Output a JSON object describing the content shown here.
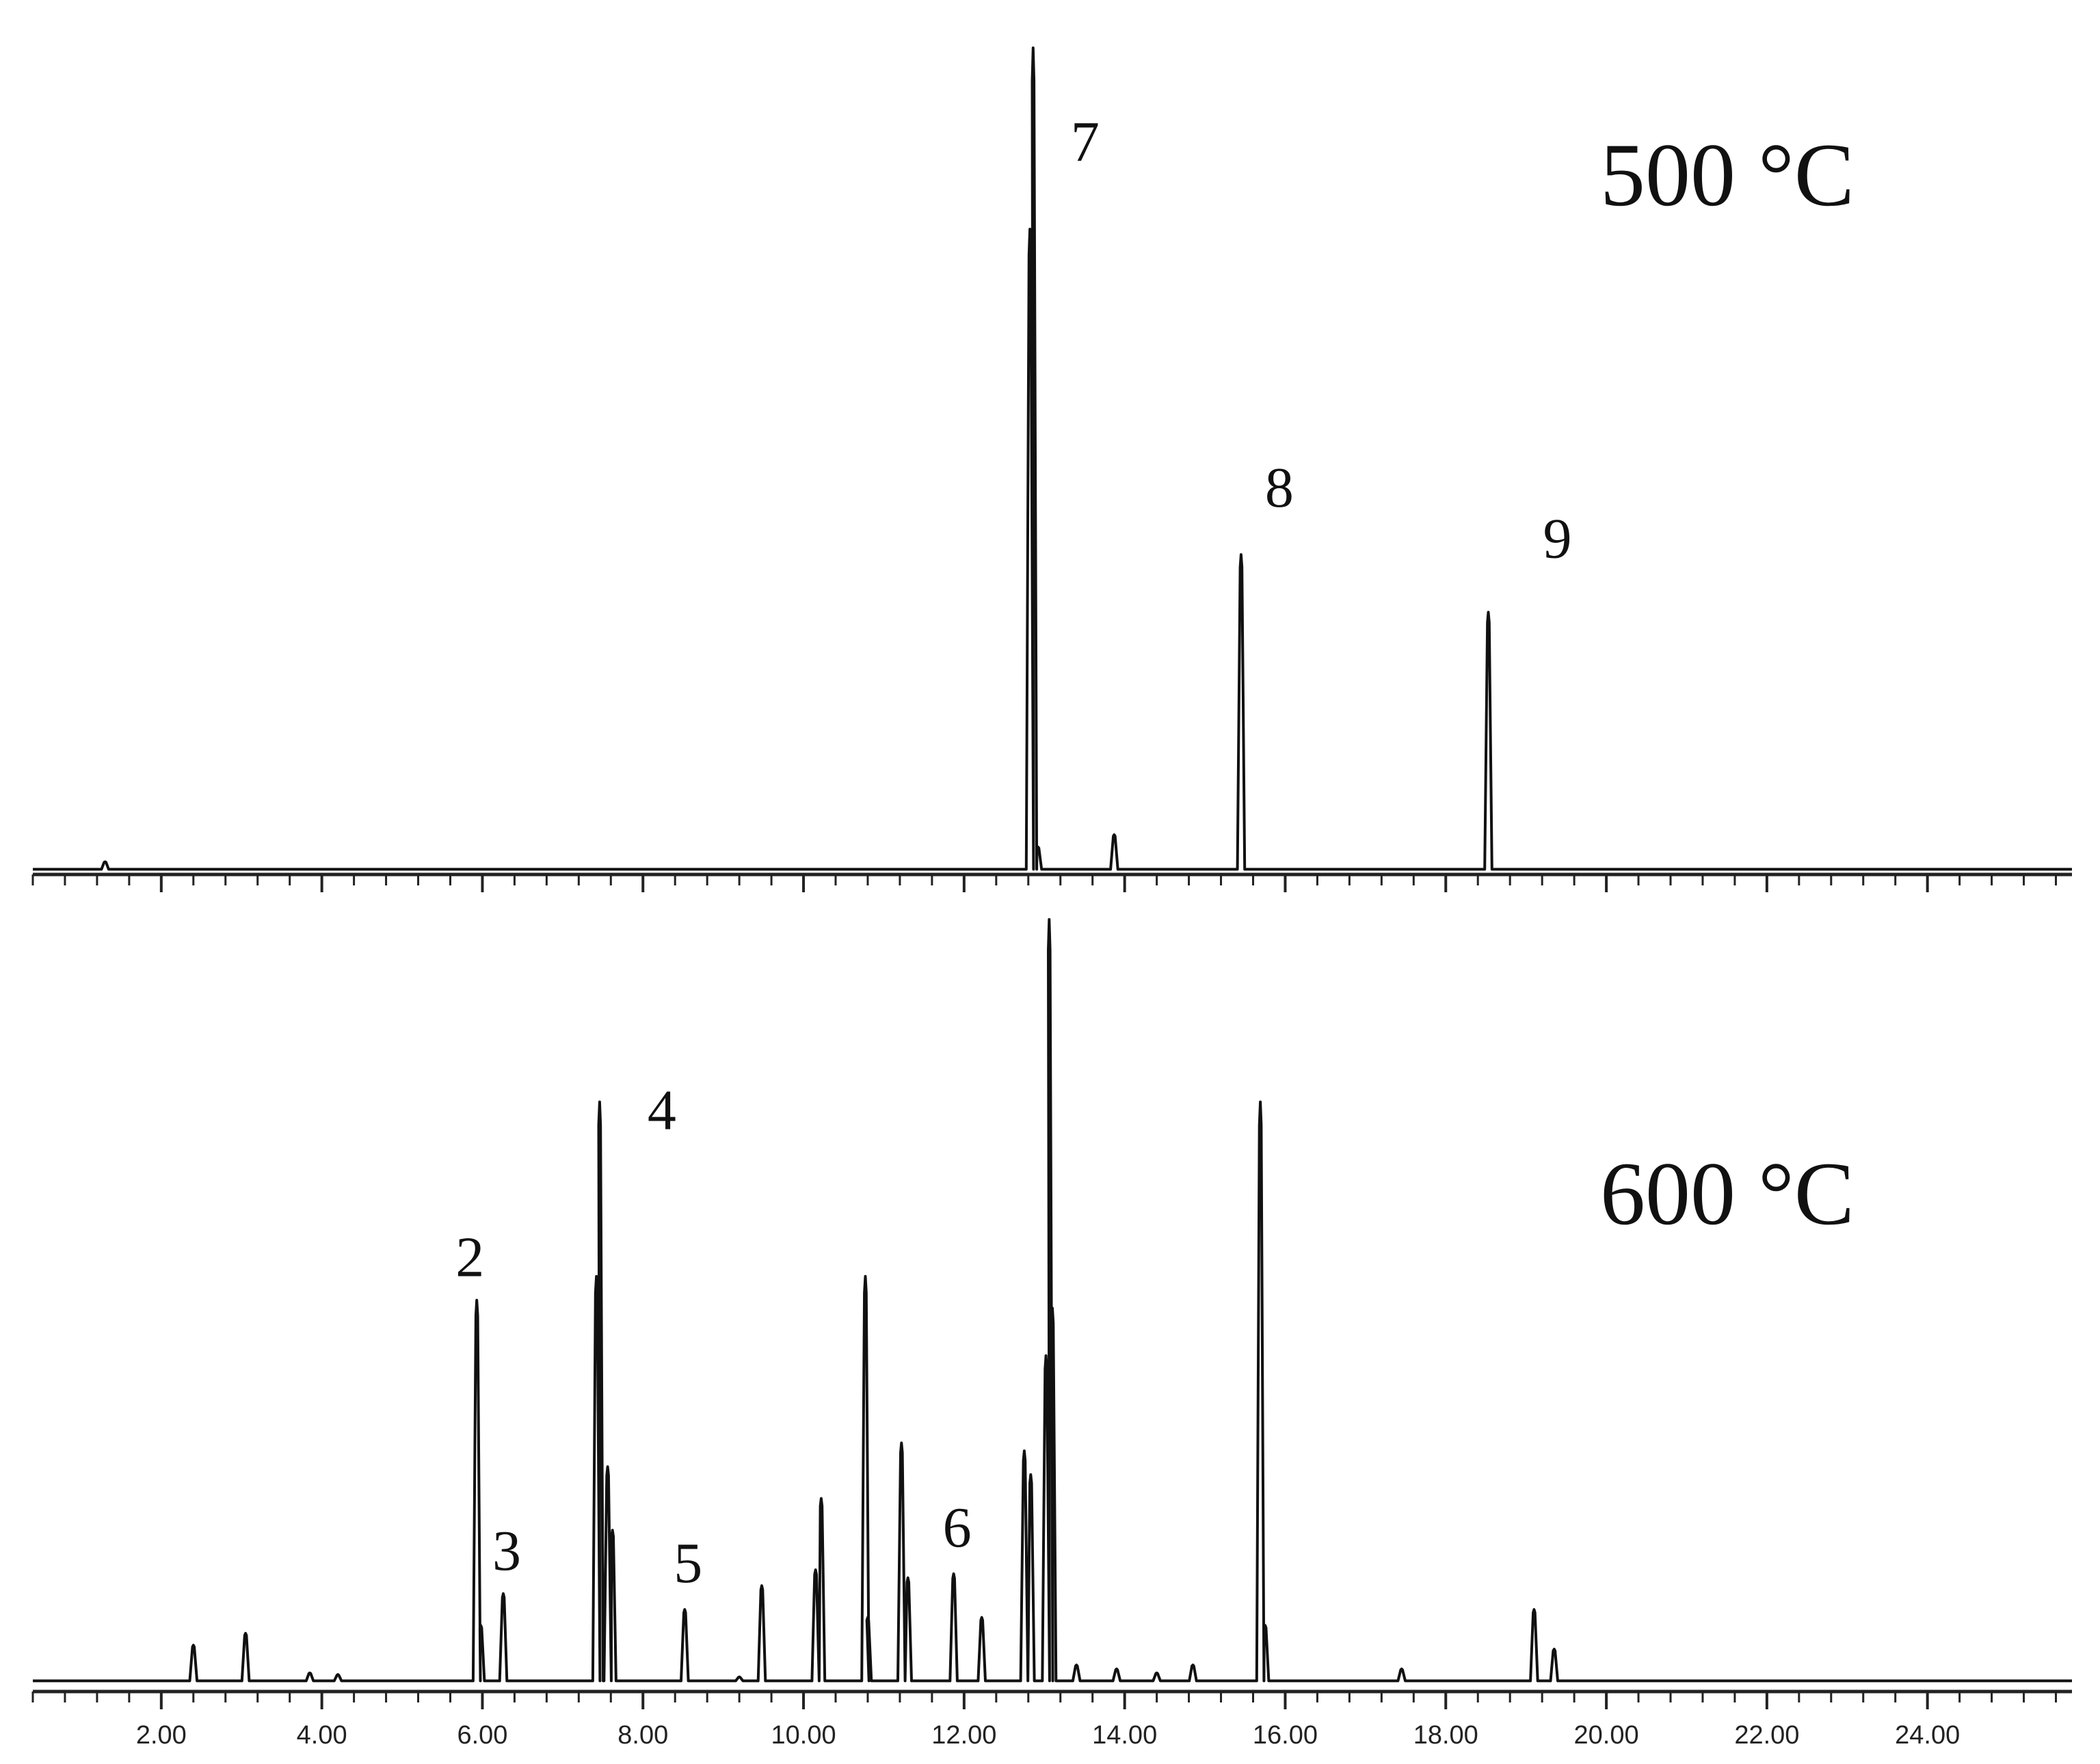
{
  "colors": {
    "trace": "#111111",
    "axis": "#222222",
    "background": "#ffffff"
  },
  "chart_data": [
    {
      "type": "line",
      "panel": "top",
      "temperature_label": "500 °C",
      "xlim": [
        0.4,
        25.8
      ],
      "ylim": [
        0,
        1.0
      ],
      "axis_ticks_labeled": false,
      "baseline": 0.003,
      "peaks": [
        {
          "x": 1.3,
          "y": 0.012
        },
        {
          "x": 12.82,
          "y": 0.78
        },
        {
          "x": 12.86,
          "y": 1.0,
          "label": "7"
        },
        {
          "x": 12.92,
          "y": 0.03
        },
        {
          "x": 13.87,
          "y": 0.045
        },
        {
          "x": 15.45,
          "y": 0.385,
          "label": "8"
        },
        {
          "x": 18.53,
          "y": 0.315,
          "label": "9"
        }
      ]
    },
    {
      "type": "line",
      "panel": "bottom",
      "temperature_label": "600 °C",
      "xlim": [
        0.4,
        25.8
      ],
      "ylim": [
        0,
        1.0
      ],
      "x_tick_labels": [
        "2.00",
        "4.00",
        "6.00",
        "8.00",
        "10.00",
        "12.00",
        "14.00",
        "16.00",
        "18.00",
        "20.00",
        "22.00",
        "24.00"
      ],
      "x_ticks": [
        2,
        4,
        6,
        8,
        10,
        12,
        14,
        16,
        18,
        20,
        22,
        24
      ],
      "baseline": 0.01,
      "peaks": [
        {
          "x": 2.4,
          "y": 0.055
        },
        {
          "x": 3.05,
          "y": 0.07
        },
        {
          "x": 3.85,
          "y": 0.02
        },
        {
          "x": 4.2,
          "y": 0.018
        },
        {
          "x": 5.93,
          "y": 0.49,
          "label": "2"
        },
        {
          "x": 5.98,
          "y": 0.08
        },
        {
          "x": 6.26,
          "y": 0.12,
          "label": "3"
        },
        {
          "x": 7.42,
          "y": 0.52
        },
        {
          "x": 7.46,
          "y": 0.74,
          "label": "4"
        },
        {
          "x": 7.56,
          "y": 0.28
        },
        {
          "x": 7.62,
          "y": 0.2
        },
        {
          "x": 8.52,
          "y": 0.1,
          "label": "5"
        },
        {
          "x": 9.2,
          "y": 0.015
        },
        {
          "x": 9.48,
          "y": 0.13
        },
        {
          "x": 10.15,
          "y": 0.15
        },
        {
          "x": 10.22,
          "y": 0.24
        },
        {
          "x": 10.77,
          "y": 0.52
        },
        {
          "x": 10.8,
          "y": 0.09
        },
        {
          "x": 11.22,
          "y": 0.31
        },
        {
          "x": 11.3,
          "y": 0.14
        },
        {
          "x": 11.87,
          "y": 0.145,
          "label": "6"
        },
        {
          "x": 12.22,
          "y": 0.09
        },
        {
          "x": 12.75,
          "y": 0.3
        },
        {
          "x": 12.83,
          "y": 0.27
        },
        {
          "x": 13.02,
          "y": 0.42
        },
        {
          "x": 13.06,
          "y": 0.97
        },
        {
          "x": 13.1,
          "y": 0.48
        },
        {
          "x": 13.4,
          "y": 0.03
        },
        {
          "x": 13.9,
          "y": 0.025
        },
        {
          "x": 14.4,
          "y": 0.02
        },
        {
          "x": 14.85,
          "y": 0.03
        },
        {
          "x": 15.69,
          "y": 0.74
        },
        {
          "x": 15.75,
          "y": 0.08
        },
        {
          "x": 17.45,
          "y": 0.025
        },
        {
          "x": 19.1,
          "y": 0.1
        },
        {
          "x": 19.35,
          "y": 0.05
        }
      ]
    }
  ]
}
